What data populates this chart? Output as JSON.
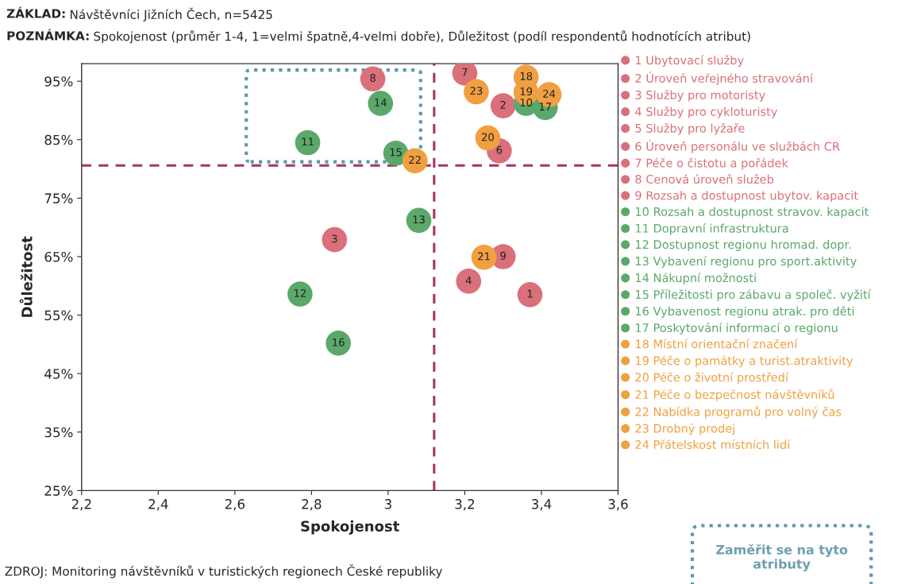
{
  "chart_data": {
    "type": "scatter",
    "title": "ZÁKLAD: Návštěvníci Jižních Čech, n=5425",
    "subtitle": "POZNÁMKA: Spokojenost (průměr 1-4, 1=velmi špatně,4-velmi dobře), Důležitost (podíl respondentů hodnotících atribut)",
    "xlabel": "Spokojenost",
    "ylabel": "Důležitost",
    "xlim": [
      2.2,
      3.6
    ],
    "ylim": [
      25,
      98
    ],
    "xticks": [
      {
        "value": 2.2,
        "label": "2,2"
      },
      {
        "value": 2.4,
        "label": "2,4"
      },
      {
        "value": 2.6,
        "label": "2,6"
      },
      {
        "value": 2.8,
        "label": "2,8"
      },
      3,
      {
        "value": 3.2,
        "label": "3,2"
      },
      {
        "value": 3.4,
        "label": "3,4"
      },
      {
        "value": 3.6,
        "label": "3,6"
      }
    ],
    "yticks": [
      {
        "value": 25,
        "label": "25%"
      },
      {
        "value": 35,
        "label": "35%"
      },
      {
        "value": 45,
        "label": "45%"
      },
      {
        "value": 55,
        "label": "55%"
      },
      {
        "value": 65,
        "label": "65%"
      },
      {
        "value": 75,
        "label": "75%"
      },
      {
        "value": 85,
        "label": "85%"
      },
      {
        "value": 95,
        "label": "95%"
      }
    ],
    "marker": "circle",
    "grid": false,
    "legend": "right",
    "ref_lines": [
      {
        "axis": "x",
        "value": 3.12,
        "color": "#a8336a",
        "line_style": "dashed"
      },
      {
        "axis": "y",
        "value": 80.6,
        "color": "#a8336a",
        "line_style": "dashed"
      }
    ],
    "annotations": [
      "ZDROJ: Monitoring návštěvníků v turistických regionech České republiky",
      "Zaměřit se na tyto atributy",
      {
        "text": "1",
        "x": 3.37,
        "y": 58.5
      },
      {
        "text": "2",
        "x": 3.3,
        "y": 90.8
      },
      {
        "text": "3",
        "x": 2.86,
        "y": 67.9
      },
      {
        "text": "4",
        "x": 3.21,
        "y": 60.8
      },
      {
        "text": "6",
        "x": 3.29,
        "y": 83.1
      },
      {
        "text": "7",
        "x": 3.2,
        "y": 96.4
      },
      {
        "text": "8",
        "x": 2.96,
        "y": 95.4
      },
      {
        "text": "9",
        "x": 3.3,
        "y": 65.0
      },
      {
        "text": "10",
        "x": 3.36,
        "y": 91.2
      },
      {
        "text": "11",
        "x": 2.79,
        "y": 84.5
      },
      {
        "text": "12",
        "x": 2.77,
        "y": 58.6
      },
      {
        "text": "13",
        "x": 3.08,
        "y": 71.2
      },
      {
        "text": "14",
        "x": 2.98,
        "y": 91.2
      },
      {
        "text": "15",
        "x": 3.02,
        "y": 82.7
      },
      {
        "text": "16",
        "x": 2.87,
        "y": 50.2
      },
      {
        "text": "17",
        "x": 3.41,
        "y": 90.5
      },
      {
        "text": "18",
        "x": 3.36,
        "y": 95.7
      },
      {
        "text": "19",
        "x": 3.36,
        "y": 93.1
      },
      {
        "text": "20",
        "x": 3.26,
        "y": 85.3
      },
      {
        "text": "21",
        "x": 3.25,
        "y": 64.9
      },
      {
        "text": "22",
        "x": 3.07,
        "y": 81.4
      },
      {
        "text": "23",
        "x": 3.23,
        "y": 93.2
      },
      {
        "text": "24",
        "x": 3.42,
        "y": 92.7
      }
    ],
    "series": [
      {
        "name": "1 Ubytovací služby",
        "color": "#d9707a",
        "x": [
          3.37
        ],
        "values": [
          58.5
        ]
      },
      {
        "name": "2 Úroveň veřejného stravování",
        "color": "#d9707a",
        "x": [
          3.3
        ],
        "values": [
          90.8
        ]
      },
      {
        "name": "3 Služby pro motoristy",
        "color": "#d9707a",
        "x": [
          2.86
        ],
        "values": [
          67.9
        ]
      },
      {
        "name": "4 Služby pro cykloturisty",
        "color": "#d9707a",
        "x": [
          3.21
        ],
        "values": [
          60.8
        ]
      },
      {
        "name": "5 Služby pro lyžaře",
        "color": "#d9707a",
        "x": [
          null
        ],
        "values": [
          null
        ]
      },
      {
        "name": "6 Úroveň personálu ve službách CR",
        "color": "#d9707a",
        "x": [
          3.29
        ],
        "values": [
          83.1
        ]
      },
      {
        "name": "7 Péče o čistotu a pořádek",
        "color": "#d9707a",
        "x": [
          3.2
        ],
        "values": [
          96.4
        ]
      },
      {
        "name": "8 Cenová úroveň služeb",
        "color": "#d9707a",
        "x": [
          2.96
        ],
        "values": [
          95.4
        ]
      },
      {
        "name": "9 Rozsah a dostupnost ubytov. kapacit",
        "color": "#d9707a",
        "x": [
          3.3
        ],
        "values": [
          65.0
        ]
      },
      {
        "name": "10 Rozsah a dostupnost stravov. kapacit",
        "color": "#5aa86a",
        "x": [
          3.36
        ],
        "values": [
          91.2
        ]
      },
      {
        "name": "11 Dopravní infrastruktura",
        "color": "#5aa86a",
        "x": [
          2.79
        ],
        "values": [
          84.5
        ]
      },
      {
        "name": "12 Dostupnost regionu hromad. dopr.",
        "color": "#5aa86a",
        "x": [
          2.77
        ],
        "values": [
          58.6
        ]
      },
      {
        "name": "13 Vybavení regionu pro sport.aktivity",
        "color": "#5aa86a",
        "x": [
          3.08
        ],
        "values": [
          71.2
        ]
      },
      {
        "name": "14 Nákupní možnosti",
        "color": "#5aa86a",
        "x": [
          2.98
        ],
        "values": [
          91.2
        ]
      },
      {
        "name": "15 Příležitosti pro zábavu a společ. vyžití",
        "color": "#5aa86a",
        "x": [
          3.02
        ],
        "values": [
          82.7
        ]
      },
      {
        "name": "16 Vybavenost regionu atrak. pro děti",
        "color": "#5aa86a",
        "x": [
          2.87
        ],
        "values": [
          50.2
        ]
      },
      {
        "name": "17 Poskytování informací o regionu",
        "color": "#5aa86a",
        "x": [
          3.41
        ],
        "values": [
          90.5
        ]
      },
      {
        "name": "18 Místní orientační značení",
        "color": "#f0a040",
        "x": [
          3.36
        ],
        "values": [
          95.7
        ]
      },
      {
        "name": "19 Péče o památky a turist.atraktivity",
        "color": "#f0a040",
        "x": [
          3.36
        ],
        "values": [
          93.1
        ]
      },
      {
        "name": "20 Péče o životní prostředí",
        "color": "#f0a040",
        "x": [
          3.26
        ],
        "values": [
          85.3
        ]
      },
      {
        "name": "21 Péče o bezpečnost návštěvníků",
        "color": "#f0a040",
        "x": [
          3.25
        ],
        "values": [
          64.9
        ]
      },
      {
        "name": "22 Nabídka programů pro volný čas",
        "color": "#f0a040",
        "x": [
          3.07
        ],
        "values": [
          81.4
        ]
      },
      {
        "name": "23 Drobný prodej",
        "color": "#f0a040",
        "x": [
          3.23
        ],
        "values": [
          93.2
        ]
      },
      {
        "name": "24 Přátelskost místních lidí",
        "color": "#f0a040",
        "x": [
          3.42
        ],
        "values": [
          92.7
        ]
      }
    ]
  }
}
